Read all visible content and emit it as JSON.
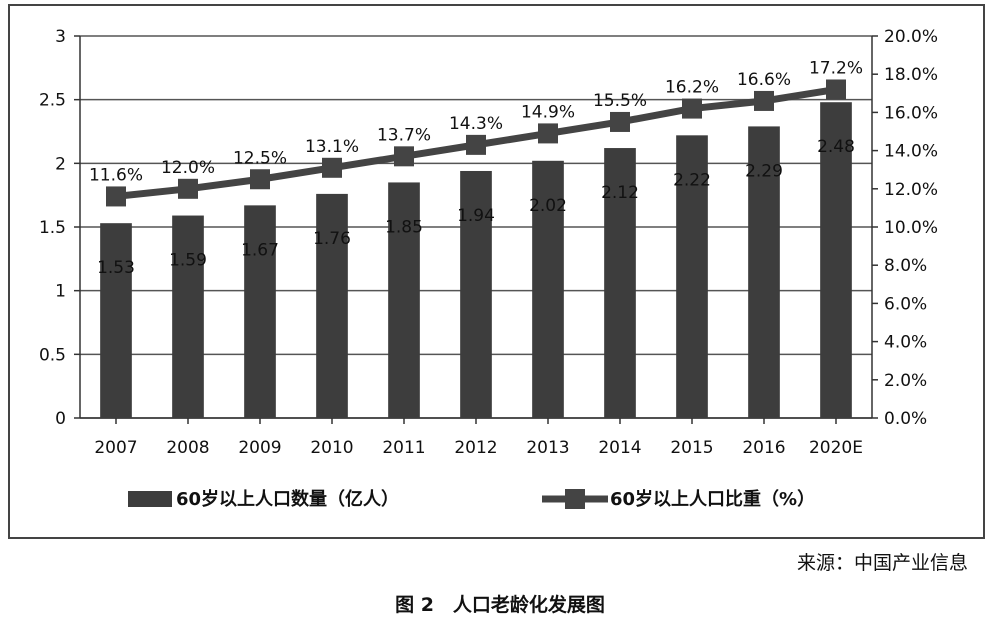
{
  "chart_data": {
    "type": "bar+line",
    "categories": [
      "2007",
      "2008",
      "2009",
      "2010",
      "2011",
      "2012",
      "2013",
      "2014",
      "2015",
      "2016",
      "2020E"
    ],
    "series": [
      {
        "name": "60岁以上人口数量（亿人）",
        "type": "bar",
        "axis": "left",
        "values": [
          1.53,
          1.59,
          1.67,
          1.76,
          1.85,
          1.94,
          2.02,
          2.12,
          2.22,
          2.29,
          2.48
        ],
        "labels": [
          "1.53",
          "1.59",
          "1.67",
          "1.76",
          "1.85",
          "1.94",
          "2.02",
          "2.12",
          "2.22",
          "2.29",
          "2.48"
        ],
        "color": "#3d3d3d"
      },
      {
        "name": "60岁以上人口比重（%）",
        "type": "line",
        "axis": "right",
        "values": [
          11.6,
          12.0,
          12.5,
          13.1,
          13.7,
          14.3,
          14.9,
          15.5,
          16.2,
          16.6,
          17.2
        ],
        "labels": [
          "11.6%",
          "12.0%",
          "12.5%",
          "13.1%",
          "13.7%",
          "14.3%",
          "14.9%",
          "15.5%",
          "16.2%",
          "16.6%",
          "17.2%"
        ],
        "color": "#444444"
      }
    ],
    "y_left": {
      "ylim": [
        0,
        3
      ],
      "ticks": [
        "0",
        "0.5",
        "1",
        "1.5",
        "2",
        "2.5",
        "3"
      ]
    },
    "y_right": {
      "ylim": [
        0,
        20
      ],
      "ticks": [
        "0.0%",
        "2.0%",
        "4.0%",
        "6.0%",
        "8.0%",
        "10.0%",
        "12.0%",
        "14.0%",
        "16.0%",
        "18.0%",
        "20.0%"
      ]
    },
    "grid": "horizontal",
    "legend_position": "bottom"
  },
  "source_text": "来源：中国产业信息",
  "caption": "图 2　人口老龄化发展图"
}
